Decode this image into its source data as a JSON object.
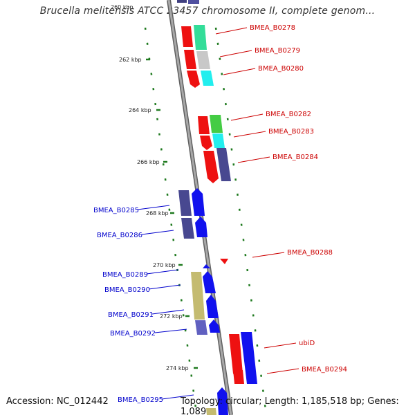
{
  "title": "Brucella melitensis ATCC 23457 chromosome II, complete genom...",
  "footer": {
    "accession": "Accession: NC_012442",
    "summary": "Topology: circular; Length: 1,185,518 bp; Genes: 1,089"
  },
  "colors": {
    "forward_label": "#cc0000",
    "reverse_label": "#0000cc",
    "tick": "#1f7a1f",
    "backbone": "#808080"
  },
  "ticks": [
    {
      "label": "262 kbp"
    },
    {
      "label": "264 kbp"
    },
    {
      "label": "266 kbp"
    },
    {
      "label": "268 kbp"
    },
    {
      "label": "270 kbp"
    },
    {
      "label": "272 kbp"
    },
    {
      "label": "274 kbp"
    }
  ],
  "genes": [
    {
      "name": "BMEA_B0278",
      "strand": "forward"
    },
    {
      "name": "BMEA_B0279",
      "strand": "forward"
    },
    {
      "name": "BMEA_B0280",
      "strand": "forward"
    },
    {
      "name": "BMEA_B0282",
      "strand": "forward"
    },
    {
      "name": "BMEA_B0283",
      "strand": "forward"
    },
    {
      "name": "BMEA_B0284",
      "strand": "forward"
    },
    {
      "name": "BMEA_B0285",
      "strand": "reverse"
    },
    {
      "name": "BMEA_B0286",
      "strand": "reverse"
    },
    {
      "name": "BMEA_B0288",
      "strand": "forward"
    },
    {
      "name": "BMEA_B0289",
      "strand": "reverse"
    },
    {
      "name": "BMEA_B0290",
      "strand": "reverse"
    },
    {
      "name": "BMEA_B0291",
      "strand": "reverse"
    },
    {
      "name": "BMEA_B0292",
      "strand": "reverse"
    },
    {
      "name": "ubiD",
      "strand": "forward"
    },
    {
      "name": "BMEA_B0294",
      "strand": "forward"
    },
    {
      "name": "BMEA_B0295",
      "strand": "reverse"
    }
  ]
}
